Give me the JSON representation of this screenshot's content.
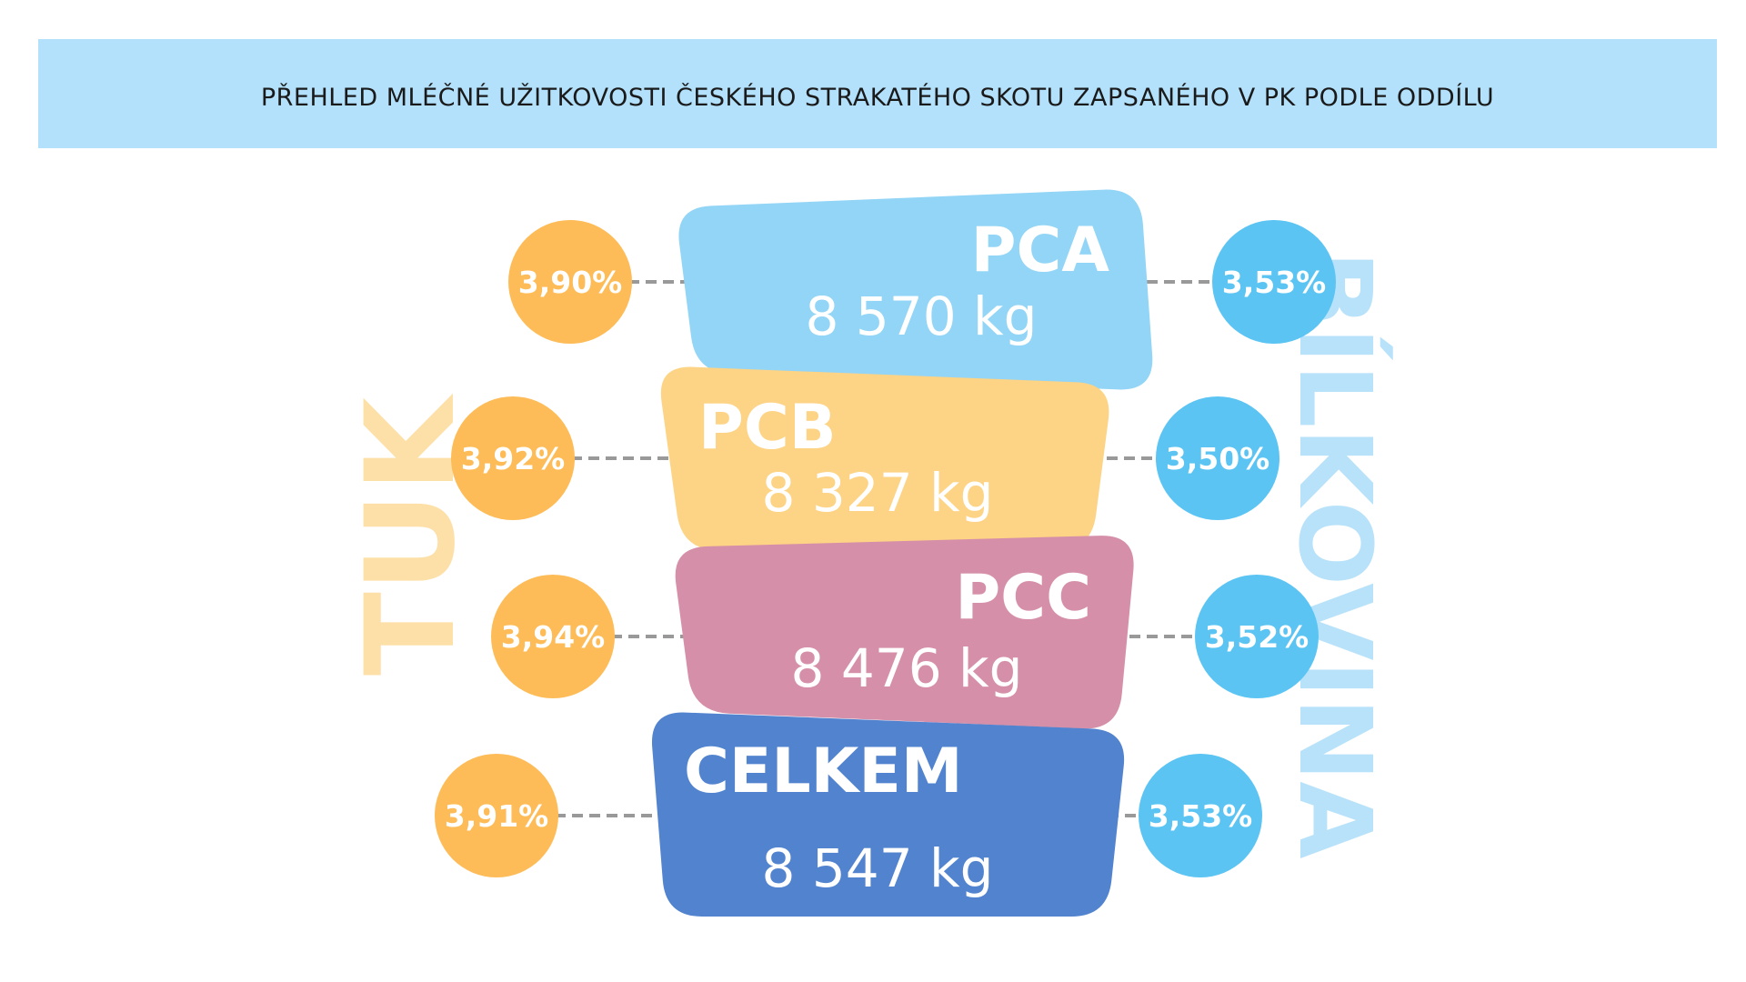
{
  "title": "PŘEHLED MLÉČNÉ UŽITKOVOSTI ČESKÉHO STRAKATÉHO SKOTU ZAPSANÉHO V PK PODLE ODDÍLU",
  "colors": {
    "banner": "#b3e1fc",
    "fat_circle": "#fdbc57",
    "protein_circle": "#5bc4f3",
    "fat_watermark": "#fde0a8",
    "protein_watermark": "#b8e2fa",
    "connector": "#999999"
  },
  "chart_data": {
    "type": "table",
    "left_label": "TUK",
    "right_label": "BÍLKOVINA",
    "rows": [
      {
        "name": "PCA",
        "milk": "8 570 kg",
        "milk_kg": 8570,
        "fat": "3,90%",
        "fat_pct": 3.9,
        "protein": "3,53%",
        "protein_pct": 3.53,
        "color": "#93d5f6"
      },
      {
        "name": "PCB",
        "milk": "8 327 kg",
        "milk_kg": 8327,
        "fat": "3,92%",
        "fat_pct": 3.92,
        "protein": "3,50%",
        "protein_pct": 3.5,
        "color": "#fdd385"
      },
      {
        "name": "PCC",
        "milk": "8 476 kg",
        "milk_kg": 8476,
        "fat": "3,94%",
        "fat_pct": 3.94,
        "protein": "3,52%",
        "protein_pct": 3.52,
        "color": "#d68fa8"
      },
      {
        "name": "CELKEM",
        "milk": "8 547 kg",
        "milk_kg": 8547,
        "fat": "3,91%",
        "fat_pct": 3.91,
        "protein": "3,53%",
        "protein_pct": 3.53,
        "color": "#5283cf"
      }
    ]
  }
}
